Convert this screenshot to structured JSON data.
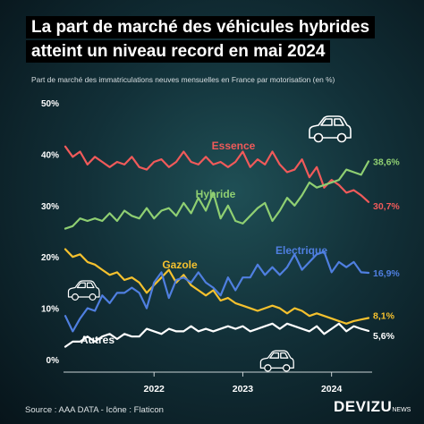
{
  "title_line1": "La part de marché des véhicules hybrides",
  "title_line2": "atteint un niveau record en mai 2024",
  "subtitle": "Part de marché des immatriculations neuves mensuelles en France par motorisation (en %)",
  "source": "Source : AAA DATA - Icône : Flaticon",
  "logo": {
    "main": "DEVIZU",
    "suffix": "NEWS"
  },
  "icons": [
    "car-icon",
    "car-icon",
    "car-icon"
  ],
  "chart_data": {
    "type": "line",
    "ylim": [
      0,
      50
    ],
    "yticks": [
      0,
      10,
      20,
      30,
      40,
      50
    ],
    "ytick_labels": [
      "0%",
      "10%",
      "20%",
      "30%",
      "40%",
      "50%"
    ],
    "year_ticks": [
      {
        "label": "2022",
        "index": 12
      },
      {
        "label": "2023",
        "index": 24
      },
      {
        "label": "2024",
        "index": 36
      }
    ],
    "grid": false,
    "series": [
      {
        "name": "Essence",
        "color": "#f05a5a",
        "end_label": "30,7%",
        "values": [
          41.5,
          39.5,
          40.5,
          38,
          39.5,
          38.5,
          37.5,
          38.5,
          38,
          39.5,
          37.5,
          37,
          38.5,
          39,
          37.5,
          38.5,
          40.5,
          38.5,
          38,
          39.5,
          38,
          38.5,
          37.5,
          38.5,
          40.5,
          37.5,
          39,
          38,
          40.5,
          38,
          36.5,
          37,
          39,
          35.5,
          37.5,
          33.5,
          35,
          34,
          32.5,
          33,
          32,
          30.7
        ]
      },
      {
        "name": "Hybride",
        "color": "#8fcf72",
        "end_label": "38,6%",
        "values": [
          25.5,
          26,
          27.5,
          27,
          27.5,
          27,
          28.5,
          27,
          29,
          28,
          27.5,
          29.5,
          27.5,
          29,
          29.5,
          28,
          30.5,
          28.5,
          31.5,
          29,
          32.5,
          27.5,
          30,
          27,
          26.5,
          28,
          29.5,
          30.5,
          27,
          29,
          31.5,
          30,
          32,
          34.5,
          33.5,
          34,
          34.5,
          35,
          37,
          36.5,
          36,
          38.6
        ]
      },
      {
        "name": "Gazole",
        "color": "#f5c12e",
        "end_label": "8,1%",
        "values": [
          21.5,
          20,
          20.5,
          19,
          18.5,
          17.5,
          16.5,
          17,
          15.5,
          16,
          15,
          13,
          14.5,
          16,
          17.5,
          15,
          16.5,
          14.5,
          13.5,
          12.5,
          13.5,
          11.5,
          12,
          11,
          10.5,
          10,
          9.5,
          10,
          10.5,
          10,
          9,
          10,
          9.5,
          8.5,
          9,
          8.5,
          8,
          7.5,
          7,
          7.5,
          7.8,
          8.1
        ]
      },
      {
        "name": "Electrique",
        "color": "#4f7fe0",
        "end_label": "16,9%",
        "values": [
          8.5,
          5.5,
          8,
          10,
          9.5,
          12.5,
          11,
          13,
          13,
          14,
          13,
          10,
          15,
          17,
          12,
          15.5,
          16,
          15,
          17,
          15,
          14,
          12.5,
          16,
          13.5,
          16,
          16,
          18.5,
          16.5,
          18,
          16.5,
          18,
          20.5,
          17.5,
          19,
          20.5,
          21,
          17,
          19,
          18,
          19,
          17,
          16.9
        ]
      },
      {
        "name": "Autres",
        "color": "#ffffff",
        "end_label": "5,6%",
        "values": [
          2.5,
          3.5,
          3.5,
          4.5,
          3.5,
          4.5,
          5,
          4,
          5,
          4.5,
          4.5,
          6,
          5.5,
          5,
          6,
          5.5,
          5.5,
          6.5,
          5.5,
          6,
          5.5,
          6,
          6.5,
          6,
          6.5,
          5.5,
          6,
          6.5,
          7,
          6,
          7,
          6.5,
          6,
          5.5,
          6.5,
          5,
          6,
          7,
          5.5,
          6.5,
          6,
          5.6
        ]
      }
    ]
  }
}
